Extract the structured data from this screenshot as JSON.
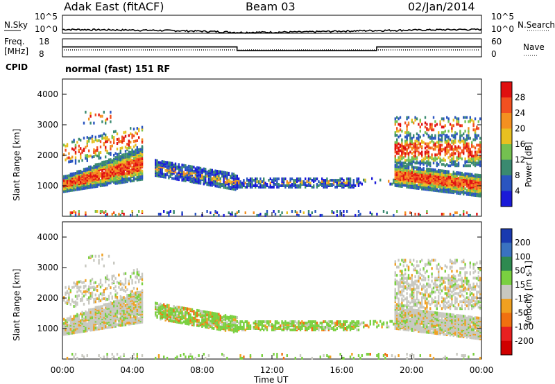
{
  "header": {
    "station": "Adak East (fitACF)",
    "beam": "Beam 03",
    "date": "02/Jan/2014"
  },
  "panels": {
    "nsky": {
      "label": "N.Sky",
      "ticks": [
        "10^5",
        "10^0"
      ],
      "right_label": "N.Search",
      "right_ticks": [
        "10^5",
        "10^0"
      ]
    },
    "freq": {
      "label_line1": "Freq.",
      "label_line2": "[MHz]",
      "ticks": [
        "18",
        "8"
      ],
      "right_label": "Nave",
      "right_ticks": [
        "60",
        "0"
      ]
    },
    "cpid": {
      "label": "CPID",
      "value": "normal (fast) 151 RF"
    }
  },
  "x_axis": {
    "label": "Time UT",
    "ticks": [
      "00:00",
      "04:00",
      "08:00",
      "12:00",
      "16:00",
      "20:00",
      "00:00"
    ]
  },
  "y_axis": {
    "label": "Slant Range [km]",
    "ticks": [
      "1000",
      "2000",
      "3000",
      "4000"
    ]
  },
  "chart_data": [
    {
      "type": "line",
      "name": "N.Sky",
      "x_range_hours": [
        0,
        24
      ],
      "ylim": [
        1,
        100000
      ],
      "log_scale": true,
      "series": [
        {
          "x": [
            0,
            6,
            10,
            14,
            18,
            24
          ],
          "values": [
            10,
            5,
            1.5,
            2,
            5,
            10
          ]
        }
      ]
    },
    {
      "type": "line",
      "name": "Freq.",
      "x_range_hours": [
        0,
        24
      ],
      "ylim": [
        8,
        18
      ],
      "series": [
        {
          "x": [
            0,
            10,
            10,
            18,
            18,
            24
          ],
          "values": [
            13.5,
            13.5,
            11.5,
            11.5,
            13.5,
            13.5
          ]
        }
      ]
    },
    {
      "type": "heatmap",
      "name": "Power",
      "colorbar_label": "Power [dB]",
      "colorbar_ticks": [
        "4",
        "8",
        "12",
        "16",
        "20",
        "24",
        "28"
      ],
      "colors": [
        "#1a1ad8",
        "#2a55c0",
        "#3a8a70",
        "#74c050",
        "#e8c020",
        "#f49020",
        "#f25020",
        "#e01010"
      ],
      "xlim": [
        0,
        24
      ],
      "ylim": [
        0,
        4500
      ]
    },
    {
      "type": "heatmap",
      "name": "Velocity",
      "colorbar_label": "Velocity [m s-1]",
      "colorbar_ticks": [
        "200",
        "100",
        "50",
        "15",
        "-15",
        "-50",
        "-100",
        "-200"
      ],
      "colors": [
        "#1a3ab0",
        "#3a72c0",
        "#2e8a50",
        "#7ad040",
        "#c8c8c0",
        "#f0a020",
        "#f07010",
        "#e82020",
        "#d00000"
      ],
      "xlim": [
        0,
        24
      ],
      "ylim": [
        0,
        4500
      ]
    }
  ],
  "colors": {
    "axis": "#000000",
    "background": "#ffffff"
  }
}
